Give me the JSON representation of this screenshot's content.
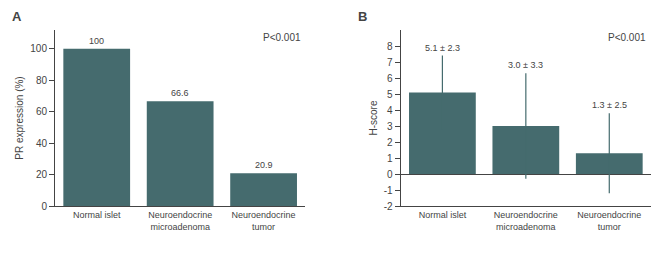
{
  "chart_data": [
    {
      "type": "bar",
      "title": "A",
      "categories": [
        "Normal islet",
        "Neuroendocrine\nmicroadenoma",
        "Neuroendocrine\ntumor"
      ],
      "values": [
        100,
        66.6,
        20.9
      ],
      "color": "#456b6e",
      "ylabel": "PR expression (%)",
      "ylim": [
        0,
        112
      ],
      "yticks": [
        0,
        20,
        40,
        60,
        80,
        100
      ],
      "annotations": [
        "P<0.001"
      ],
      "data_labels": true,
      "grid": false
    },
    {
      "type": "bar",
      "title": "B",
      "categories": [
        "Normal islet",
        "Neuroendocrine\nmicroadenoma",
        "Neuroendocrine\ntumor"
      ],
      "values": [
        5.1,
        3.0,
        1.3
      ],
      "errors": [
        2.3,
        3.3,
        2.5
      ],
      "value_labels": [
        "5.1 ± 2.3",
        "3.0 ± 3.3",
        "1.3 ± 2.5"
      ],
      "color": "#456b6e",
      "ylabel": "H-score",
      "ylim": [
        -2,
        9
      ],
      "yticks": [
        -2,
        -1,
        0,
        1,
        2,
        3,
        4,
        5,
        6,
        7,
        8
      ],
      "annotations": [
        "P<0.001"
      ],
      "data_labels": true,
      "grid": false
    }
  ]
}
